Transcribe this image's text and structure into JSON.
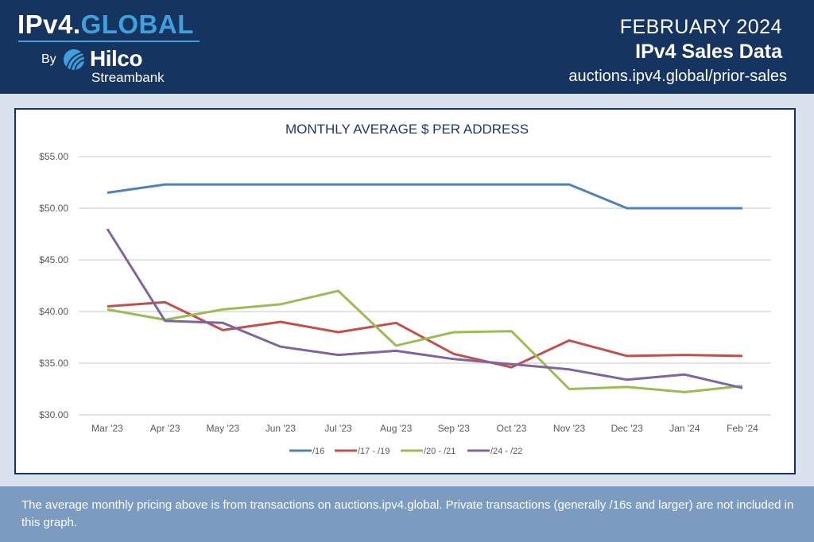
{
  "header": {
    "logo": {
      "part1": "IPv4.",
      "part2": "GLOBAL",
      "by": "By",
      "brand": "Hilco",
      "brand_sub": "Streambank",
      "tm": "™"
    },
    "month": "FEBRUARY 2024",
    "title": "IPv4 Sales Data",
    "url": "auctions.ipv4.global/prior-sales"
  },
  "colors": {
    "header_bg": "#163460",
    "accent": "#3fa0de",
    "footer_bg": "#7b9bc0"
  },
  "chart_data": {
    "type": "line",
    "title": "MONTHLY AVERAGE $ PER ADDRESS",
    "categories": [
      "Mar '23",
      "Apr '23",
      "May '23",
      "Jun '23",
      "Jul '23",
      "Aug '23",
      "Sep '23",
      "Oct '23",
      "Nov '23",
      "Dec '23",
      "Jan '24",
      "Feb '24"
    ],
    "ylim": [
      30,
      55
    ],
    "yticks": [
      "$30.00",
      "$35.00",
      "$40.00",
      "$45.00",
      "$50.00",
      "$55.00"
    ],
    "ytick_values": [
      30,
      35,
      40,
      45,
      50,
      55
    ],
    "grid": true,
    "legend": "bottom",
    "series": [
      {
        "name": "/16",
        "color": "#4f81bd",
        "values": [
          51.5,
          52.3,
          52.3,
          52.3,
          52.3,
          52.3,
          52.3,
          52.3,
          52.3,
          50.0,
          50.0,
          50.0
        ]
      },
      {
        "name": "/17 - /19",
        "color": "#c0504d",
        "values": [
          40.5,
          40.9,
          38.2,
          39.0,
          38.0,
          38.9,
          35.9,
          34.6,
          37.2,
          35.7,
          35.8,
          35.7
        ]
      },
      {
        "name": "/20 - /21",
        "color": "#9bbb59",
        "values": [
          40.2,
          39.2,
          40.2,
          40.7,
          42.0,
          36.7,
          38.0,
          38.1,
          32.5,
          32.7,
          32.2,
          32.8
        ]
      },
      {
        "name": "/24 - /22",
        "color": "#8064a2",
        "values": [
          48.0,
          39.1,
          38.9,
          36.6,
          35.8,
          36.2,
          35.4,
          34.9,
          34.4,
          33.4,
          33.9,
          32.6
        ]
      }
    ]
  },
  "footer": {
    "note": "The average monthly pricing above is from transactions on auctions.ipv4.global. Private transactions (generally /16s and larger) are not included in this graph."
  }
}
